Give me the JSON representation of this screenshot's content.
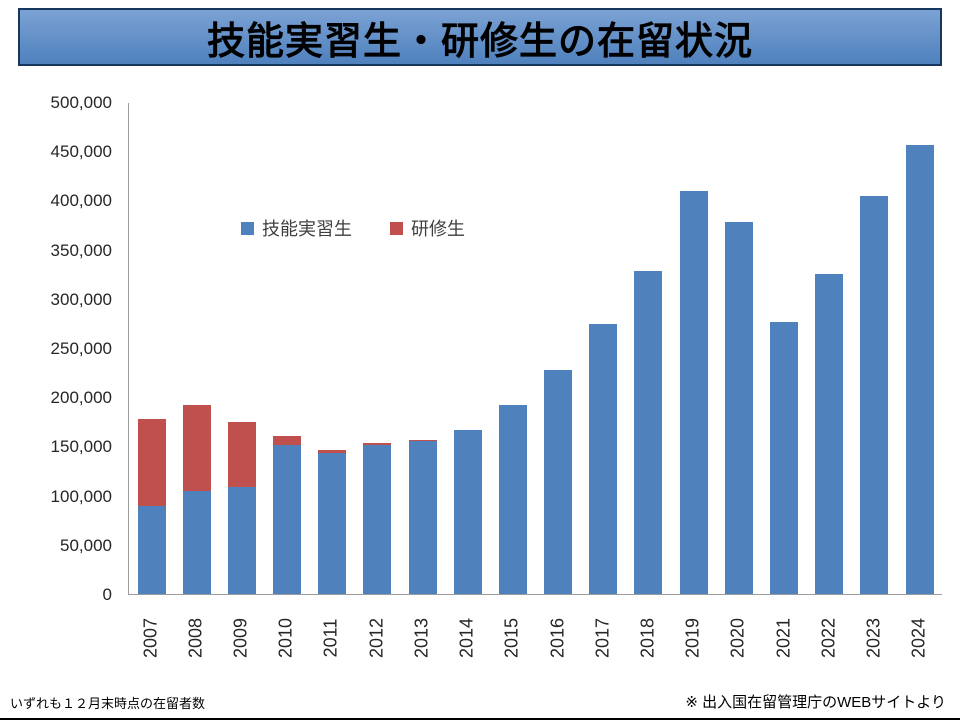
{
  "slide": {
    "title": "技能実習生・研修生の在留状況",
    "footnote_left": "いずれも１２月末時点の在留者数",
    "footnote_right": "※ 出入国在留管理庁のWEBサイトより"
  },
  "chart_data": {
    "type": "bar",
    "stacked": true,
    "title": "技能実習生・研修生の在留状況",
    "categories": [
      "2007",
      "2008",
      "2009",
      "2010",
      "2011",
      "2012",
      "2013",
      "2014",
      "2015",
      "2016",
      "2017",
      "2018",
      "2019",
      "2020",
      "2021",
      "2022",
      "2023",
      "2024"
    ],
    "series": [
      {
        "name": "技能実習生",
        "color": "#4f81bd",
        "values": [
          89000,
          105000,
          109000,
          151000,
          143000,
          151000,
          155000,
          167000,
          192000,
          228000,
          274000,
          328000,
          410000,
          378000,
          276000,
          325000,
          404000,
          456000
        ]
      },
      {
        "name": "研修生",
        "color": "#c0504d",
        "values": [
          88000,
          87000,
          66000,
          9000,
          3400,
          1800,
          1500,
          0,
          0,
          0,
          0,
          0,
          0,
          0,
          0,
          0,
          0,
          0
        ]
      }
    ],
    "xlabel": "",
    "ylabel": "",
    "ylim": [
      0,
      500000
    ],
    "ytick_step": 50000,
    "yticks": [
      "500,000",
      "450,000",
      "400,000",
      "350,000",
      "300,000",
      "250,000",
      "200,000",
      "150,000",
      "100,000",
      "50,000",
      "0"
    ],
    "grid": false,
    "legend_position": "inside-upper-left"
  }
}
